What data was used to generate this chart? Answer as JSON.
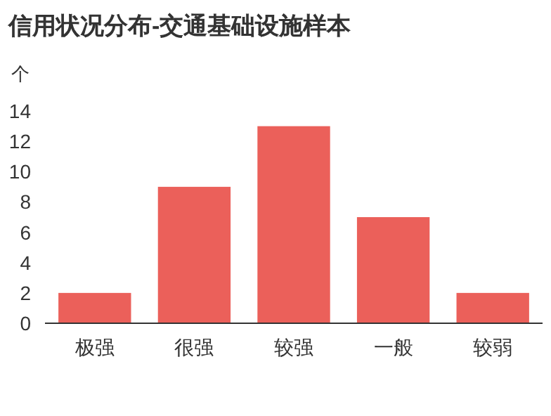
{
  "chart_data": {
    "type": "bar",
    "title": "信用状况分布-交通基础设施样本",
    "ylabel": "个",
    "categories": [
      "极强",
      "很强",
      "较强",
      "一般",
      "较弱"
    ],
    "values": [
      2,
      9,
      13,
      7,
      2
    ],
    "color": "#eb605a",
    "ylim": [
      0,
      14
    ],
    "yticks": [
      0,
      2,
      4,
      6,
      8,
      10,
      12,
      14
    ],
    "grid": false
  }
}
